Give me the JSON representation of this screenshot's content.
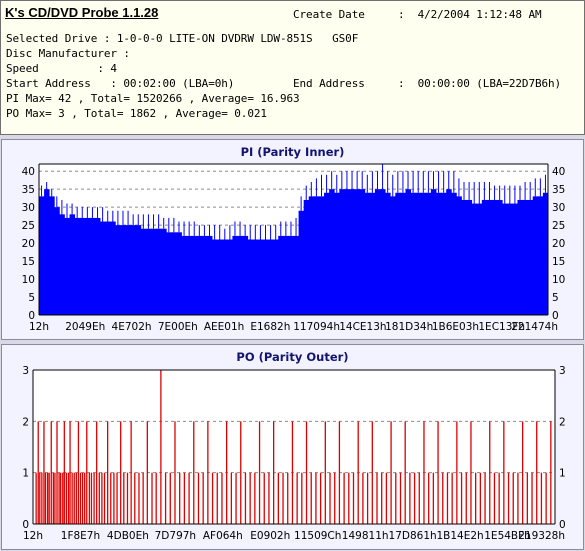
{
  "header": {
    "app_title": "K's CD/DVD Probe 1.1.28",
    "create_date_label": "Create Date",
    "create_date_value": ":  4/2/2004 1:12:48 AM",
    "selected_drive": "Selected Drive : 1-0-0-0 LITE-ON DVDRW LDW-851S   GS0F",
    "disc_manufacturer": "Disc Manufacturer :",
    "speed": "Speed         : 4",
    "start_address": "Start Address   : 00:02:00 (LBA=0h)",
    "end_address_label": "End Address",
    "end_address_value": ":  00:00:00 (LBA=22D7B6h)",
    "pi_summary": "PI Max= 42 , Total= 1520266 , Average= 16.963",
    "po_summary": "PO Max= 3 , Total= 1862 , Average= 0.021"
  },
  "colors": {
    "pi_bar": "#0000ff",
    "po_bar": "#dd0000",
    "grid": "#8c8c8c",
    "panel_bg": "#f3f3ff",
    "title_text": "#141470"
  },
  "chart_data": [
    {
      "type": "bar",
      "title": "PI (Parity Inner)",
      "x_tick_labels": [
        "12h",
        "2049Eh",
        "4E702h",
        "7E00Eh",
        "AEE01h",
        "E1682h",
        "117094h",
        "14CE13h",
        "181D34h",
        "1B6E03h",
        "1EC13Fh",
        "221474h"
      ],
      "y_ticks": [
        0,
        5,
        10,
        15,
        20,
        25,
        30,
        35,
        40
      ],
      "ylim": [
        0,
        42
      ],
      "grid": true,
      "max": 42,
      "series": [
        {
          "values": [
            33,
            35,
            33,
            30,
            28,
            27,
            28,
            27,
            27,
            27,
            27,
            27,
            26,
            26,
            26,
            25,
            25,
            25,
            25,
            25,
            24,
            24,
            24,
            24,
            24,
            23,
            23,
            23,
            22,
            22,
            22,
            22,
            22,
            22,
            21,
            21,
            21,
            21,
            22,
            22,
            22,
            21,
            21,
            21,
            21,
            21,
            21,
            22,
            22,
            22,
            22,
            29,
            32,
            33,
            33,
            33,
            34,
            35,
            34,
            35,
            35,
            35,
            35,
            35,
            34,
            34,
            35,
            35,
            34,
            33,
            34,
            34,
            35,
            34,
            34,
            34,
            34,
            35,
            34,
            34,
            35,
            34,
            33,
            32,
            32,
            31,
            31,
            32,
            32,
            32,
            32,
            31,
            31,
            31,
            32,
            32,
            32,
            33,
            33,
            34
          ],
          "peaks": [
            36,
            37,
            35,
            33,
            32,
            31,
            31,
            30,
            30,
            30,
            30,
            30,
            30,
            29,
            29,
            29,
            29,
            29,
            28,
            28,
            28,
            28,
            28,
            28,
            27,
            27,
            27,
            26,
            26,
            26,
            26,
            25,
            25,
            25,
            25,
            25,
            24,
            25,
            26,
            26,
            25,
            25,
            25,
            25,
            25,
            25,
            25,
            26,
            26,
            26,
            27,
            33,
            36,
            37,
            38,
            39,
            39,
            40,
            39,
            40,
            40,
            40,
            40,
            40,
            39,
            40,
            40,
            42,
            40,
            39,
            40,
            40,
            40,
            40,
            40,
            40,
            40,
            40,
            40,
            40,
            40,
            40,
            38,
            37,
            37,
            37,
            37,
            37,
            37,
            36,
            36,
            36,
            36,
            36,
            36,
            37,
            37,
            38,
            38,
            39
          ]
        }
      ]
    },
    {
      "type": "bar",
      "title": "PO (Parity Outer)",
      "x_tick_labels": [
        "12h",
        "1F8E7h",
        "4DB0Eh",
        "7D797h",
        "AF064h",
        "E0902h",
        "11509Ch",
        "149811h",
        "17D861h",
        "1B14E2h",
        "1E54BFh",
        "219328h"
      ],
      "y_ticks": [
        0,
        1,
        2,
        3
      ],
      "ylim": [
        0,
        3
      ],
      "grid": true,
      "max": 3,
      "spikes": [
        {
          "x": 0.006,
          "v": 1
        },
        {
          "x": 0.01,
          "v": 2
        },
        {
          "x": 0.013,
          "v": 1
        },
        {
          "x": 0.017,
          "v": 1
        },
        {
          "x": 0.021,
          "v": 2
        },
        {
          "x": 0.024,
          "v": 1
        },
        {
          "x": 0.028,
          "v": 1
        },
        {
          "x": 0.031,
          "v": 1
        },
        {
          "x": 0.035,
          "v": 2
        },
        {
          "x": 0.039,
          "v": 1
        },
        {
          "x": 0.042,
          "v": 1
        },
        {
          "x": 0.046,
          "v": 2
        },
        {
          "x": 0.05,
          "v": 1
        },
        {
          "x": 0.053,
          "v": 1
        },
        {
          "x": 0.057,
          "v": 1
        },
        {
          "x": 0.06,
          "v": 2
        },
        {
          "x": 0.064,
          "v": 1
        },
        {
          "x": 0.068,
          "v": 1
        },
        {
          "x": 0.071,
          "v": 2
        },
        {
          "x": 0.075,
          "v": 1
        },
        {
          "x": 0.079,
          "v": 1
        },
        {
          "x": 0.083,
          "v": 1
        },
        {
          "x": 0.087,
          "v": 2
        },
        {
          "x": 0.091,
          "v": 1
        },
        {
          "x": 0.095,
          "v": 1
        },
        {
          "x": 0.099,
          "v": 1
        },
        {
          "x": 0.103,
          "v": 2
        },
        {
          "x": 0.108,
          "v": 1
        },
        {
          "x": 0.112,
          "v": 1
        },
        {
          "x": 0.117,
          "v": 1
        },
        {
          "x": 0.122,
          "v": 2
        },
        {
          "x": 0.127,
          "v": 1
        },
        {
          "x": 0.132,
          "v": 1
        },
        {
          "x": 0.137,
          "v": 1
        },
        {
          "x": 0.143,
          "v": 2
        },
        {
          "x": 0.149,
          "v": 1
        },
        {
          "x": 0.155,
          "v": 1
        },
        {
          "x": 0.161,
          "v": 1
        },
        {
          "x": 0.168,
          "v": 2
        },
        {
          "x": 0.174,
          "v": 1
        },
        {
          "x": 0.181,
          "v": 1
        },
        {
          "x": 0.188,
          "v": 2
        },
        {
          "x": 0.195,
          "v": 1
        },
        {
          "x": 0.203,
          "v": 1
        },
        {
          "x": 0.211,
          "v": 1
        },
        {
          "x": 0.219,
          "v": 2
        },
        {
          "x": 0.228,
          "v": 1
        },
        {
          "x": 0.236,
          "v": 1
        },
        {
          "x": 0.245,
          "v": 3
        },
        {
          "x": 0.254,
          "v": 1
        },
        {
          "x": 0.263,
          "v": 1
        },
        {
          "x": 0.272,
          "v": 2
        },
        {
          "x": 0.281,
          "v": 1
        },
        {
          "x": 0.29,
          "v": 1
        },
        {
          "x": 0.299,
          "v": 1
        },
        {
          "x": 0.308,
          "v": 2
        },
        {
          "x": 0.317,
          "v": 1
        },
        {
          "x": 0.326,
          "v": 1
        },
        {
          "x": 0.335,
          "v": 2
        },
        {
          "x": 0.344,
          "v": 1
        },
        {
          "x": 0.353,
          "v": 1
        },
        {
          "x": 0.362,
          "v": 1
        },
        {
          "x": 0.371,
          "v": 2
        },
        {
          "x": 0.38,
          "v": 1
        },
        {
          "x": 0.389,
          "v": 1
        },
        {
          "x": 0.398,
          "v": 2
        },
        {
          "x": 0.407,
          "v": 1
        },
        {
          "x": 0.416,
          "v": 1
        },
        {
          "x": 0.425,
          "v": 1
        },
        {
          "x": 0.434,
          "v": 2
        },
        {
          "x": 0.443,
          "v": 1
        },
        {
          "x": 0.452,
          "v": 1
        },
        {
          "x": 0.461,
          "v": 2
        },
        {
          "x": 0.47,
          "v": 1
        },
        {
          "x": 0.479,
          "v": 1
        },
        {
          "x": 0.488,
          "v": 1
        },
        {
          "x": 0.497,
          "v": 2
        },
        {
          "x": 0.506,
          "v": 1
        },
        {
          "x": 0.515,
          "v": 1
        },
        {
          "x": 0.524,
          "v": 2
        },
        {
          "x": 0.533,
          "v": 1
        },
        {
          "x": 0.542,
          "v": 1
        },
        {
          "x": 0.551,
          "v": 1
        },
        {
          "x": 0.56,
          "v": 2
        },
        {
          "x": 0.569,
          "v": 1
        },
        {
          "x": 0.578,
          "v": 1
        },
        {
          "x": 0.587,
          "v": 2
        },
        {
          "x": 0.596,
          "v": 1
        },
        {
          "x": 0.605,
          "v": 1
        },
        {
          "x": 0.614,
          "v": 1
        },
        {
          "x": 0.623,
          "v": 2
        },
        {
          "x": 0.632,
          "v": 1
        },
        {
          "x": 0.641,
          "v": 1
        },
        {
          "x": 0.65,
          "v": 2
        },
        {
          "x": 0.659,
          "v": 1
        },
        {
          "x": 0.668,
          "v": 1
        },
        {
          "x": 0.677,
          "v": 1
        },
        {
          "x": 0.686,
          "v": 2
        },
        {
          "x": 0.695,
          "v": 1
        },
        {
          "x": 0.704,
          "v": 1
        },
        {
          "x": 0.713,
          "v": 2
        },
        {
          "x": 0.722,
          "v": 1
        },
        {
          "x": 0.731,
          "v": 1
        },
        {
          "x": 0.74,
          "v": 1
        },
        {
          "x": 0.749,
          "v": 2
        },
        {
          "x": 0.758,
          "v": 1
        },
        {
          "x": 0.767,
          "v": 1
        },
        {
          "x": 0.776,
          "v": 2
        },
        {
          "x": 0.785,
          "v": 1
        },
        {
          "x": 0.794,
          "v": 1
        },
        {
          "x": 0.803,
          "v": 1
        },
        {
          "x": 0.812,
          "v": 2
        },
        {
          "x": 0.821,
          "v": 1
        },
        {
          "x": 0.83,
          "v": 1
        },
        {
          "x": 0.839,
          "v": 2
        },
        {
          "x": 0.848,
          "v": 1
        },
        {
          "x": 0.857,
          "v": 1
        },
        {
          "x": 0.866,
          "v": 1
        },
        {
          "x": 0.875,
          "v": 2
        },
        {
          "x": 0.884,
          "v": 1
        },
        {
          "x": 0.893,
          "v": 1
        },
        {
          "x": 0.902,
          "v": 2
        },
        {
          "x": 0.911,
          "v": 1
        },
        {
          "x": 0.92,
          "v": 1
        },
        {
          "x": 0.929,
          "v": 1
        },
        {
          "x": 0.938,
          "v": 2
        },
        {
          "x": 0.947,
          "v": 1
        },
        {
          "x": 0.956,
          "v": 1
        },
        {
          "x": 0.965,
          "v": 2
        },
        {
          "x": 0.974,
          "v": 1
        },
        {
          "x": 0.983,
          "v": 1
        },
        {
          "x": 0.992,
          "v": 2
        }
      ]
    }
  ]
}
